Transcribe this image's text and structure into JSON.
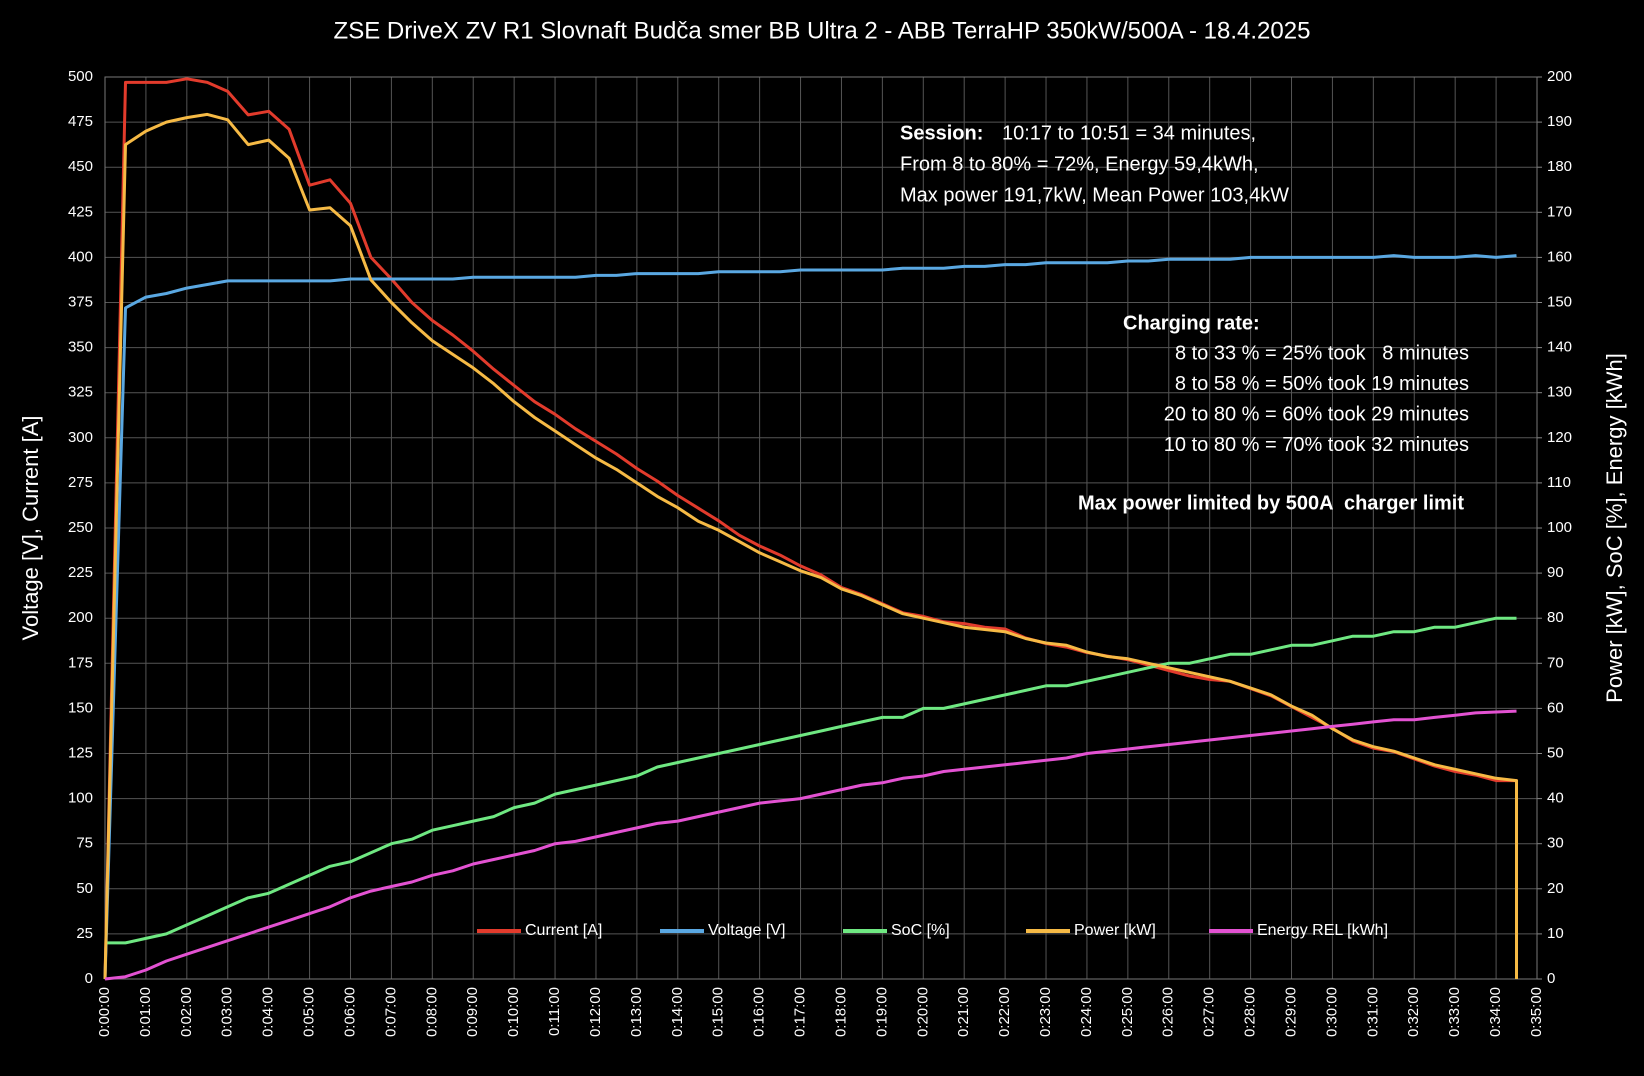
{
  "chart_data": {
    "type": "line",
    "title": "ZSE DriveX ZV R1 Slovnaft Budča smer BB Ultra 2 - ABB TerraHP 350kW/500A - 18.4.2025",
    "y_label": "Voltage [V], Current [A]",
    "y2_label": "Power [kW], SoC [%], Energy [kWh]",
    "grid": true,
    "legend": "bottom",
    "x": [
      0,
      0.5,
      1,
      1.5,
      2,
      2.5,
      3,
      3.5,
      4,
      4.5,
      5,
      5.5,
      6,
      6.5,
      7,
      7.5,
      8,
      8.5,
      9,
      9.5,
      10,
      10.5,
      11,
      11.5,
      12,
      12.5,
      13,
      13.5,
      14,
      14.5,
      15,
      15.5,
      16,
      16.5,
      17,
      17.5,
      18,
      18.5,
      19,
      19.5,
      20,
      20.5,
      21,
      21.5,
      22,
      22.5,
      23,
      23.5,
      24,
      24.5,
      25,
      25.5,
      26,
      26.5,
      27,
      27.5,
      28,
      28.5,
      29,
      29.5,
      30,
      30.5,
      31,
      31.5,
      32,
      32.5,
      33,
      33.5,
      34,
      34.5,
      34.5
    ],
    "xlim": [
      0,
      35
    ],
    "xticks": [
      {
        "value": 0,
        "label": "0:00:00"
      },
      {
        "value": 1,
        "label": "0:01:00"
      },
      {
        "value": 2,
        "label": "0:02:00"
      },
      {
        "value": 3,
        "label": "0:03:00"
      },
      {
        "value": 4,
        "label": "0:04:00"
      },
      {
        "value": 5,
        "label": "0:05:00"
      },
      {
        "value": 6,
        "label": "0:06:00"
      },
      {
        "value": 7,
        "label": "0:07:00"
      },
      {
        "value": 8,
        "label": "0:08:00"
      },
      {
        "value": 9,
        "label": "0:09:00"
      },
      {
        "value": 10,
        "label": "0:10:00"
      },
      {
        "value": 11,
        "label": "0:11:00"
      },
      {
        "value": 12,
        "label": "0:12:00"
      },
      {
        "value": 13,
        "label": "0:13:00"
      },
      {
        "value": 14,
        "label": "0:14:00"
      },
      {
        "value": 15,
        "label": "0:15:00"
      },
      {
        "value": 16,
        "label": "0:16:00"
      },
      {
        "value": 17,
        "label": "0:17:00"
      },
      {
        "value": 18,
        "label": "0:18:00"
      },
      {
        "value": 19,
        "label": "0:19:00"
      },
      {
        "value": 20,
        "label": "0:20:00"
      },
      {
        "value": 21,
        "label": "0:21:00"
      },
      {
        "value": 22,
        "label": "0:22:00"
      },
      {
        "value": 23,
        "label": "0:23:00"
      },
      {
        "value": 24,
        "label": "0:24:00"
      },
      {
        "value": 25,
        "label": "0:25:00"
      },
      {
        "value": 26,
        "label": "0:26:00"
      },
      {
        "value": 27,
        "label": "0:27:00"
      },
      {
        "value": 28,
        "label": "0:28:00"
      },
      {
        "value": 29,
        "label": "0:29:00"
      },
      {
        "value": 30,
        "label": "0:30:00"
      },
      {
        "value": 31,
        "label": "0:31:00"
      },
      {
        "value": 32,
        "label": "0:32:00"
      },
      {
        "value": 33,
        "label": "0:33:00"
      },
      {
        "value": 34,
        "label": "0:34:00"
      },
      {
        "value": 35,
        "label": "0:35:00"
      }
    ],
    "ylim": [
      0,
      500
    ],
    "yticks": [
      0,
      25,
      50,
      75,
      100,
      125,
      150,
      175,
      200,
      225,
      250,
      275,
      300,
      325,
      350,
      375,
      400,
      425,
      450,
      475,
      500
    ],
    "y2lim": [
      0,
      200
    ],
    "y2ticks": [
      0,
      10,
      20,
      30,
      40,
      50,
      60,
      70,
      80,
      90,
      100,
      110,
      120,
      130,
      140,
      150,
      160,
      170,
      180,
      190,
      200
    ],
    "series": [
      {
        "name": "Current [A]",
        "color": "#e23b2c",
        "axis": "y",
        "values": [
          0,
          497,
          497,
          497,
          499,
          497,
          492,
          479,
          481,
          471,
          440,
          443,
          430,
          400,
          388,
          375,
          365,
          357,
          348,
          338,
          329,
          320,
          313,
          305,
          298,
          291,
          283,
          276,
          268,
          261,
          254,
          246,
          240,
          235,
          229,
          224,
          217,
          213,
          208,
          203,
          201,
          198,
          197,
          195,
          194,
          189,
          186,
          184,
          181,
          179,
          177,
          174,
          171,
          168,
          166,
          165,
          161,
          157,
          151,
          145,
          139,
          132,
          128,
          126,
          122,
          118,
          115,
          113,
          110,
          110,
          0
        ]
      },
      {
        "name": "Voltage [V]",
        "color": "#5aa8e2",
        "axis": "y",
        "values": [
          0,
          372,
          378,
          380,
          383,
          385,
          387,
          387,
          387,
          387,
          387,
          387,
          388,
          388,
          388,
          388,
          388,
          388,
          389,
          389,
          389,
          389,
          389,
          389,
          390,
          390,
          391,
          391,
          391,
          391,
          392,
          392,
          392,
          392,
          393,
          393,
          393,
          393,
          393,
          394,
          394,
          394,
          395,
          395,
          396,
          396,
          397,
          397,
          397,
          397,
          398,
          398,
          399,
          399,
          399,
          399,
          400,
          400,
          400,
          400,
          400,
          400,
          400,
          401,
          400,
          400,
          400,
          401,
          400,
          401,
          null
        ]
      },
      {
        "name": "SoC [%]",
        "color": "#6fe882",
        "axis": "y2",
        "values": [
          8,
          8,
          9,
          10,
          12,
          14,
          16,
          18,
          19,
          21,
          23,
          25,
          26,
          28,
          30,
          31,
          33,
          34,
          35,
          36,
          38,
          39,
          41,
          42,
          43,
          44,
          45,
          47,
          48,
          49,
          50,
          51,
          52,
          53,
          54,
          55,
          56,
          57,
          58,
          58,
          60,
          60,
          61,
          62,
          63,
          64,
          65,
          65,
          66,
          67,
          68,
          69,
          70,
          70,
          71,
          72,
          72,
          73,
          74,
          74,
          75,
          76,
          76,
          77,
          77,
          78,
          78,
          79,
          80,
          80,
          null
        ]
      },
      {
        "name": "Power [kW]",
        "color": "#f6ba45",
        "axis": "y2",
        "values": [
          0,
          185,
          188,
          190,
          191,
          191.7,
          190.5,
          185,
          186,
          182,
          170.5,
          171,
          167,
          155,
          150,
          145.5,
          141.5,
          138.5,
          135.5,
          132,
          128,
          124.5,
          121.5,
          118.5,
          115.5,
          113,
          110,
          107,
          104.5,
          101.5,
          99.5,
          97,
          94.5,
          92.5,
          90.5,
          89,
          86.5,
          85,
          83,
          81,
          80,
          79,
          78,
          77.5,
          77,
          75.5,
          74.5,
          74,
          72.5,
          71.5,
          71,
          70,
          69,
          68,
          67,
          66,
          64.5,
          63,
          60.5,
          58.5,
          55.5,
          53,
          51.5,
          50.5,
          49,
          47.5,
          46.5,
          45.5,
          44.5,
          44,
          0
        ]
      },
      {
        "name": "Energy REL [kWh]",
        "color": "#e352d2",
        "axis": "y2",
        "values": [
          0,
          0.5,
          2,
          4,
          5.5,
          7,
          8.5,
          10,
          11.5,
          13,
          14.5,
          16,
          18,
          19.5,
          20.5,
          21.5,
          23,
          24,
          25.5,
          26.5,
          27.5,
          28.5,
          30,
          30.5,
          31.5,
          32.5,
          33.5,
          34.5,
          35,
          36,
          37,
          38,
          39,
          39.5,
          40,
          41,
          42,
          43,
          43.5,
          44.5,
          45,
          46,
          46.5,
          47,
          47.5,
          48,
          48.5,
          49,
          50,
          50.5,
          51,
          51.5,
          52,
          52.5,
          53,
          53.5,
          54,
          54.5,
          55,
          55.5,
          56,
          56.5,
          57,
          57.5,
          57.5,
          58,
          58.5,
          59,
          59.2,
          59.4,
          null
        ]
      }
    ],
    "session": {
      "label": "Session:",
      "lines": [
        "10:17 to 10:51 = 34 minutes,",
        "From 8 to 80% = 72%, Energy 59,4kWh,",
        "Max power 191,7kW, Mean Power 103,4kW"
      ]
    },
    "charging_rate": {
      "label": "Charging rate:",
      "lines": [
        "8 to 33 % = 25% took   8 minutes",
        "8 to 58 % = 50% took 19 minutes",
        "20 to 80 % = 60% took 29 minutes",
        "10 to 80 % = 70% took 32 minutes"
      ]
    },
    "note": "Max power limited by 500A  charger limit"
  }
}
